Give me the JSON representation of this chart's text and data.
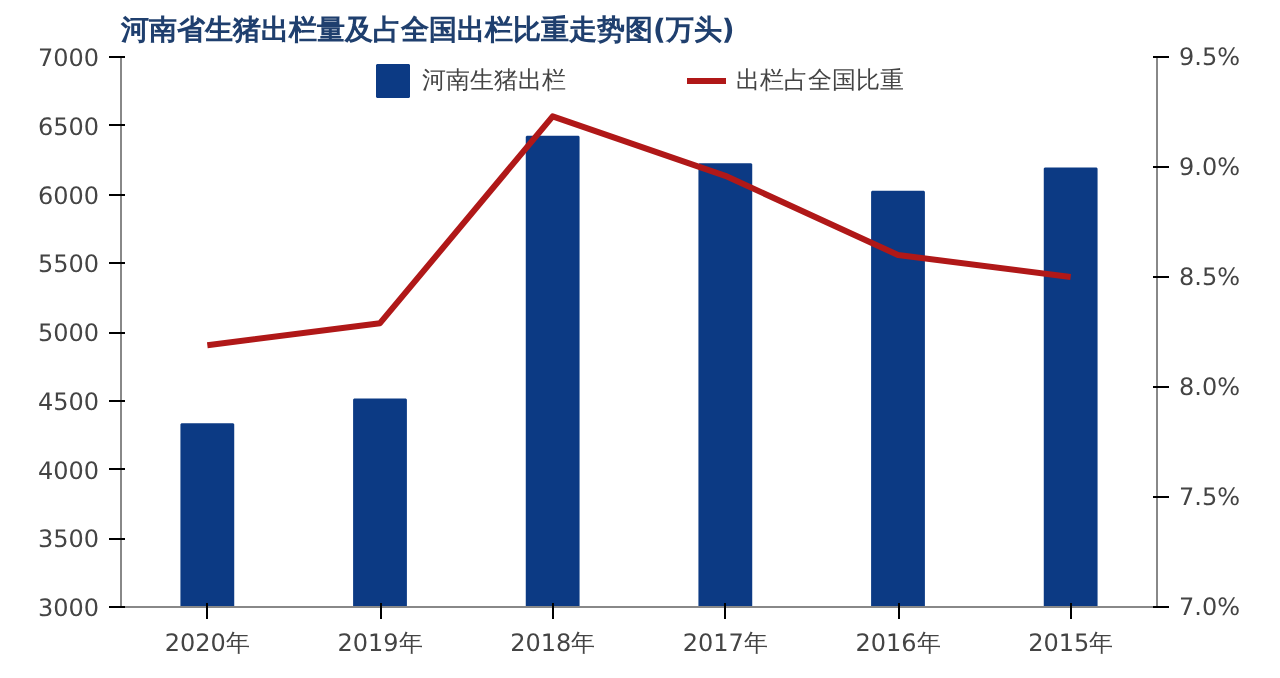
{
  "chart_data": {
    "type": "bar",
    "title": "河南省生猪出栏量及占全国出栏比重走势图(万头)",
    "categories": [
      "2020年",
      "2019年",
      "2018年",
      "2017年",
      "2016年",
      "2015年"
    ],
    "series": [
      {
        "name": "河南生猪出栏",
        "color": "#0c3a84",
        "values": [
          4330,
          4510,
          6420,
          6220,
          6020,
          6190
        ]
      },
      {
        "name": "出栏占全国比重",
        "color": "#b01818",
        "type": "line",
        "axis": "y2",
        "values": [
          8.19,
          8.29,
          9.23,
          8.96,
          8.6,
          8.5
        ]
      }
    ],
    "ylim": [
      3000,
      7000
    ],
    "yticks": [
      3000,
      3500,
      4000,
      4500,
      5000,
      5500,
      6000,
      6500,
      7000
    ],
    "y2lim": [
      7.0,
      9.5
    ],
    "y2ticks": [
      {
        "value": 7.0,
        "label": "7.0%"
      },
      {
        "value": 7.5,
        "label": "7.5%"
      },
      {
        "value": 8.0,
        "label": "8.0%"
      },
      {
        "value": 8.5,
        "label": "8.5%"
      },
      {
        "value": 9.0,
        "label": "9.0%"
      },
      {
        "value": 9.5,
        "label": "9.5%"
      }
    ],
    "grid": false,
    "legend": "top"
  }
}
